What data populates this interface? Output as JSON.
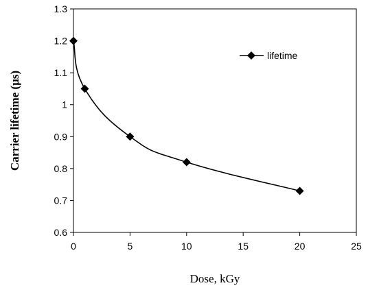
{
  "chart_data": {
    "type": "line",
    "title": "",
    "xlabel": "Dose, kGy",
    "ylabel": "Carrier lifetime (µs)",
    "xlim": [
      0,
      25
    ],
    "ylim": [
      0.6,
      1.3
    ],
    "x_ticks": [
      "0",
      "5",
      "10",
      "15",
      "20",
      "25"
    ],
    "y_ticks": [
      "0.6",
      "0.7",
      "0.8",
      "0.9",
      "1",
      "1.1",
      "1.2",
      "1.3"
    ],
    "grid": false,
    "legend": "top-right",
    "smooth": true,
    "marker": "diamond",
    "series": [
      {
        "name": "lifetime",
        "x": [
          0,
          1,
          5,
          10,
          20
        ],
        "y": [
          1.2,
          1.05,
          0.9,
          0.82,
          0.73
        ],
        "color": "#000000"
      }
    ]
  }
}
